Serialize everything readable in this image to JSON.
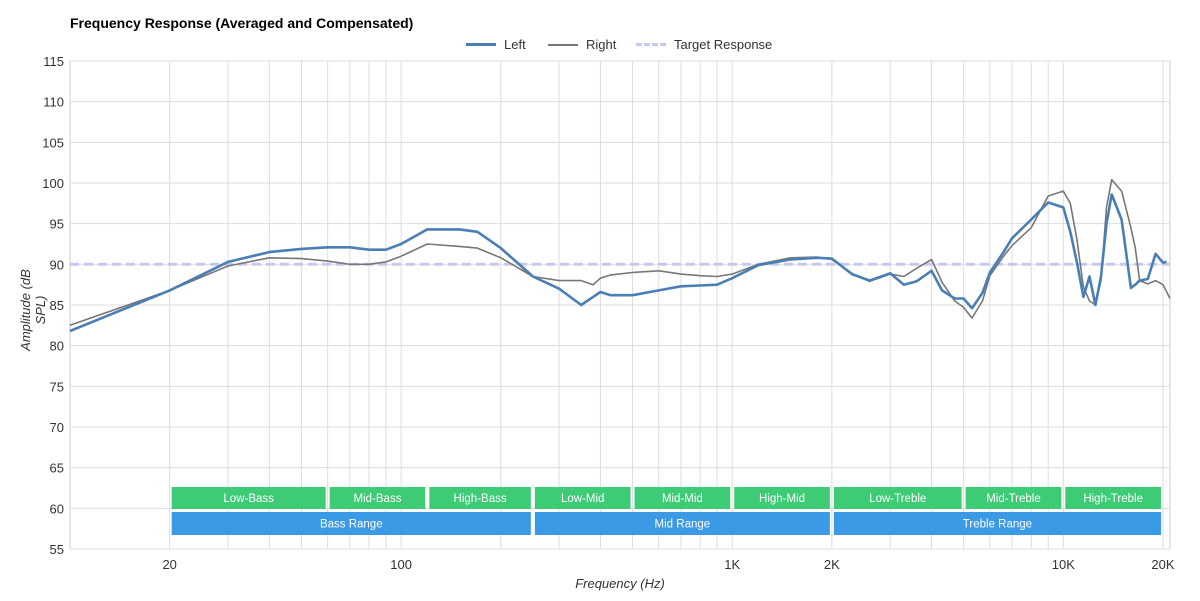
{
  "chart_data": {
    "type": "line",
    "title": "Frequency Response (Averaged and Compensated)",
    "xlabel": "Frequency (Hz)",
    "ylabel": "Amplitude (dB SPL)",
    "x_scale": "log",
    "xlim": [
      10,
      21000
    ],
    "ylim": [
      55,
      115
    ],
    "y_ticks": [
      55,
      60,
      65,
      70,
      75,
      80,
      85,
      90,
      95,
      100,
      105,
      110,
      115
    ],
    "x_tick_labels": [
      {
        "value": 20,
        "label": "20"
      },
      {
        "value": 100,
        "label": "100"
      },
      {
        "value": 1000,
        "label": "1K"
      },
      {
        "value": 2000,
        "label": "2K"
      },
      {
        "value": 10000,
        "label": "10K"
      },
      {
        "value": 20000,
        "label": "20K"
      }
    ],
    "grid": true,
    "legend_position": "top-center",
    "series": [
      {
        "name": "Left",
        "color": "#4a7fb5",
        "style": "solid",
        "x": [
          10,
          20,
          30,
          40,
          50,
          60,
          70,
          80,
          90,
          100,
          120,
          150,
          170,
          200,
          250,
          300,
          350,
          380,
          400,
          430,
          500,
          600,
          700,
          800,
          900,
          1000,
          1200,
          1500,
          1800,
          2000,
          2300,
          2600,
          3000,
          3300,
          3600,
          4000,
          4300,
          4700,
          5000,
          5300,
          5700,
          6000,
          6600,
          7000,
          8000,
          9000,
          10000,
          10500,
          11000,
          11500,
          12000,
          12500,
          13000,
          13500,
          14000,
          15000,
          16000,
          16500,
          17000,
          18000,
          19000,
          20000,
          20500
        ],
        "y": [
          81.8,
          86.8,
          90.3,
          91.5,
          91.9,
          92.1,
          92.1,
          91.8,
          91.8,
          92.5,
          94.3,
          94.3,
          94.0,
          92.0,
          88.5,
          87.0,
          85.0,
          86.0,
          86.6,
          86.2,
          86.2,
          86.8,
          87.3,
          87.4,
          87.5,
          88.3,
          89.9,
          90.6,
          90.8,
          90.7,
          88.8,
          88.0,
          88.9,
          87.5,
          87.9,
          89.2,
          86.8,
          85.8,
          85.8,
          84.6,
          86.5,
          89.0,
          91.5,
          93.2,
          95.5,
          97.6,
          97.0,
          94.0,
          90.2,
          86.0,
          88.5,
          85.0,
          88.5,
          95.0,
          98.6,
          95.5,
          87.1,
          87.5,
          88.0,
          88.2,
          91.3,
          90.2,
          90.3
        ]
      },
      {
        "name": "Right",
        "color": "#777777",
        "style": "solid",
        "x": [
          10,
          20,
          30,
          40,
          50,
          60,
          70,
          80,
          90,
          100,
          120,
          150,
          170,
          200,
          250,
          300,
          350,
          380,
          400,
          430,
          500,
          600,
          700,
          800,
          900,
          1000,
          1200,
          1500,
          1800,
          2000,
          2300,
          2600,
          3000,
          3300,
          3600,
          4000,
          4300,
          4700,
          5000,
          5300,
          5700,
          6000,
          6600,
          7000,
          8000,
          9000,
          10000,
          10500,
          11000,
          11500,
          12000,
          12500,
          13000,
          13500,
          14000,
          15000,
          16000,
          16500,
          17000,
          18000,
          19000,
          20000,
          21000
        ],
        "y": [
          82.5,
          86.8,
          89.8,
          90.8,
          90.7,
          90.4,
          90.0,
          90.0,
          90.3,
          91.0,
          92.5,
          92.2,
          92.0,
          90.8,
          88.5,
          88.0,
          88.0,
          87.5,
          88.3,
          88.7,
          89.0,
          89.2,
          88.8,
          88.6,
          88.5,
          88.8,
          90.0,
          90.8,
          90.9,
          90.6,
          88.9,
          87.9,
          88.8,
          88.5,
          89.5,
          90.6,
          87.8,
          85.5,
          84.7,
          83.4,
          85.5,
          88.6,
          91.0,
          92.3,
          94.5,
          98.4,
          99.0,
          97.5,
          93.0,
          87.2,
          85.5,
          85.0,
          88.0,
          97.0,
          100.4,
          99.0,
          94.5,
          92.0,
          88.0,
          87.6,
          88.0,
          87.5,
          85.8
        ]
      },
      {
        "name": "Target Response",
        "color": "#c5c9f0",
        "style": "dashed",
        "x": [
          10,
          21000
        ],
        "y": [
          90,
          90
        ]
      }
    ],
    "annotations": {
      "sub_ranges": [
        {
          "label": "Low-Bass",
          "from": 20,
          "to": 60,
          "color": "#3ecb76"
        },
        {
          "label": "Mid-Bass",
          "from": 60,
          "to": 120,
          "color": "#3ecb76"
        },
        {
          "label": "High-Bass",
          "from": 120,
          "to": 250,
          "color": "#3ecb76"
        },
        {
          "label": "Low-Mid",
          "from": 250,
          "to": 500,
          "color": "#3ecb76"
        },
        {
          "label": "Mid-Mid",
          "from": 500,
          "to": 1000,
          "color": "#3ecb76"
        },
        {
          "label": "High-Mid",
          "from": 1000,
          "to": 2000,
          "color": "#3ecb76"
        },
        {
          "label": "Low-Treble",
          "from": 2000,
          "to": 5000,
          "color": "#3ecb76"
        },
        {
          "label": "Mid-Treble",
          "from": 5000,
          "to": 10000,
          "color": "#3ecb76"
        },
        {
          "label": "High-Treble",
          "from": 10000,
          "to": 20000,
          "color": "#3ecb76"
        }
      ],
      "ranges": [
        {
          "label": "Bass Range",
          "from": 20,
          "to": 250,
          "color": "#3a9ae6"
        },
        {
          "label": "Mid Range",
          "from": 250,
          "to": 2000,
          "color": "#3a9ae6"
        },
        {
          "label": "Treble Range",
          "from": 2000,
          "to": 20000,
          "color": "#3a9ae6"
        }
      ]
    }
  }
}
